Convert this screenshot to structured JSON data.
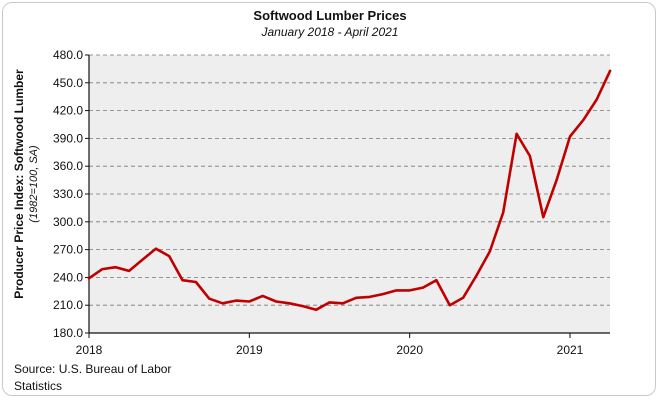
{
  "chart_data": {
    "type": "line",
    "title": "Softwood Lumber Prices",
    "subtitle": "January 2018 - April 2021",
    "ylabel": "Producer Price Index: Softwood Lumber",
    "ylabel_sub": "(1982=100, SA)",
    "ylim": [
      180,
      480
    ],
    "yticks": [
      "480.0",
      "450.0",
      "420.0",
      "390.0",
      "360.0",
      "330.0",
      "300.0",
      "270.0",
      "240.0",
      "210.0",
      "180.0"
    ],
    "xticks": [
      "2018",
      "2019",
      "2020",
      "2021"
    ],
    "grid": true,
    "line_color": "#c00000",
    "series": [
      {
        "x": [
          "2018-01",
          "2018-02",
          "2018-03",
          "2018-04",
          "2018-05",
          "2018-06",
          "2018-07",
          "2018-08",
          "2018-09",
          "2018-10",
          "2018-11",
          "2018-12",
          "2019-01",
          "2019-02",
          "2019-03",
          "2019-04",
          "2019-05",
          "2019-06",
          "2019-07",
          "2019-08",
          "2019-09",
          "2019-10",
          "2019-11",
          "2019-12",
          "2020-01",
          "2020-02",
          "2020-03",
          "2020-04",
          "2020-05",
          "2020-06",
          "2020-07",
          "2020-08",
          "2020-09",
          "2020-10",
          "2020-11",
          "2020-12",
          "2021-01",
          "2021-02",
          "2021-03",
          "2021-04"
        ],
        "values": [
          239,
          249,
          251,
          247,
          259,
          271,
          263,
          237,
          235,
          217,
          212,
          215,
          214,
          220,
          214,
          212,
          209,
          205,
          213,
          212,
          218,
          219,
          222,
          226,
          226,
          229,
          237,
          210,
          218,
          242,
          268,
          310,
          395,
          371,
          305,
          345,
          392,
          410,
          432,
          463
        ]
      }
    ]
  },
  "source": "Source: U.S. Bureau of Labor Statistics"
}
